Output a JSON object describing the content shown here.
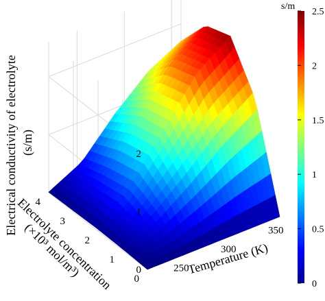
{
  "chart_data": {
    "type": "surface",
    "title": "",
    "x_axis": {
      "label": "Temperature (K)",
      "ticks": [
        "250",
        "300",
        "350"
      ],
      "tick_values": [
        250,
        300,
        350
      ],
      "range": [
        220,
        360
      ]
    },
    "y_axis": {
      "label_line1": "Electrolyte concentration",
      "label_line2": "(×10³ mol/m³)",
      "ticks": [
        "0",
        "1",
        "2",
        "3",
        "4"
      ],
      "tick_values": [
        0,
        1,
        2,
        3,
        4
      ],
      "range": [
        0,
        4
      ]
    },
    "z_axis": {
      "label_line1": "Electrical conductivity of electrolyte",
      "label_line2": "(s/m)",
      "ticks": [
        "0",
        "1",
        "2"
      ],
      "tick_values": [
        0,
        1,
        2
      ],
      "range": [
        0,
        2.5
      ]
    },
    "colorbar": {
      "unit_label": "s/m",
      "ticks": [
        "0",
        "0.5",
        "1",
        "1.5",
        "2",
        "2.5"
      ],
      "tick_values": [
        0,
        0.5,
        1,
        1.5,
        2,
        2.5
      ],
      "colormap": "jet",
      "range": [
        0,
        2.5
      ]
    },
    "surface_samples": {
      "temperature_K": [
        220,
        255,
        290,
        325,
        360
      ],
      "concentration": [
        0,
        1,
        2,
        3,
        4
      ],
      "conductivity": [
        [
          0.0,
          0.02,
          0.03,
          0.02,
          0.01
        ],
        [
          0.0,
          0.35,
          0.55,
          0.45,
          0.3
        ],
        [
          0.0,
          0.8,
          1.3,
          1.2,
          0.9
        ],
        [
          0.0,
          1.3,
          2.05,
          1.9,
          1.4
        ],
        [
          0.0,
          1.7,
          2.45,
          2.3,
          1.7
        ]
      ]
    },
    "grid": true,
    "legend": "colorbar-right"
  }
}
